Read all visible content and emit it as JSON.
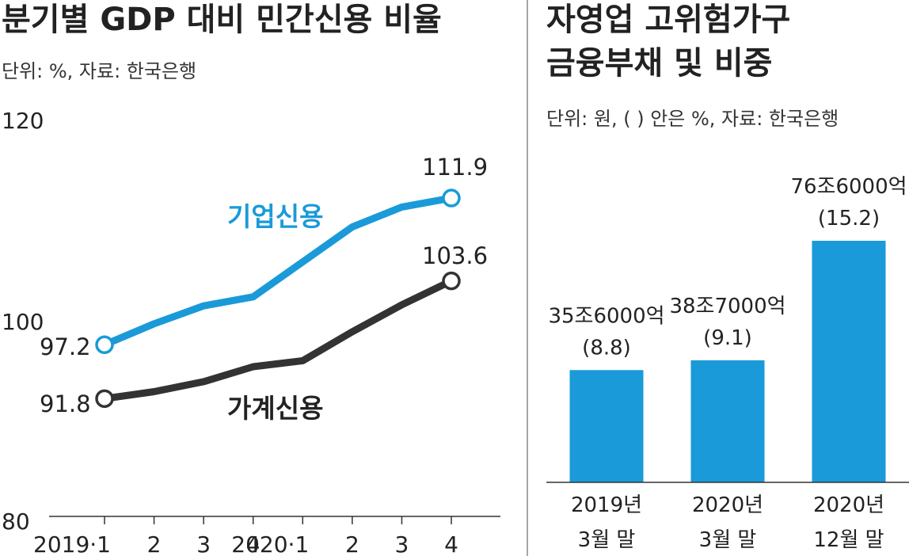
{
  "chart_data": [
    {
      "type": "line",
      "title": "분기별 GDP 대비 민간신용 비율",
      "subtitle": "단위: %, 자료: 한국은행",
      "categories": [
        "2019·1",
        "2",
        "3",
        "4",
        "2020·1",
        "2",
        "3",
        "4"
      ],
      "ylim": [
        80,
        120
      ],
      "yticks": [
        "120",
        "100",
        "80"
      ],
      "grid": false,
      "series": [
        {
          "name": "기업신용",
          "color": "#1a9ad9",
          "values": [
            97.2,
            99.3,
            101.1,
            102.0,
            105.5,
            109.0,
            111.0,
            111.9
          ],
          "first_label": "97.2",
          "last_label": "111.9"
        },
        {
          "name": "가계신용",
          "color": "#333333",
          "values": [
            91.8,
            92.5,
            93.5,
            95.0,
            95.6,
            98.5,
            101.2,
            103.6
          ],
          "first_label": "91.8",
          "last_label": "103.6"
        }
      ]
    },
    {
      "type": "bar",
      "title": [
        "자영업 고위험가구",
        "금융부채 및 비중"
      ],
      "subtitle": "단위: 원, ( ) 안은 %, 자료: 한국은행",
      "color": "#1a9ad9",
      "categories": [
        [
          "2019년",
          "3월 말"
        ],
        [
          "2020년",
          "3월 말"
        ],
        [
          "2020년",
          "12월 말"
        ]
      ],
      "values": [
        35.6,
        38.7,
        76.6
      ],
      "ratios": [
        8.8,
        9.1,
        15.2
      ],
      "value_labels": [
        "35조6000억",
        "38조7000억",
        "76조6000억"
      ],
      "ratio_labels": [
        "(8.8)",
        "(9.1)",
        "(15.2)"
      ]
    }
  ]
}
